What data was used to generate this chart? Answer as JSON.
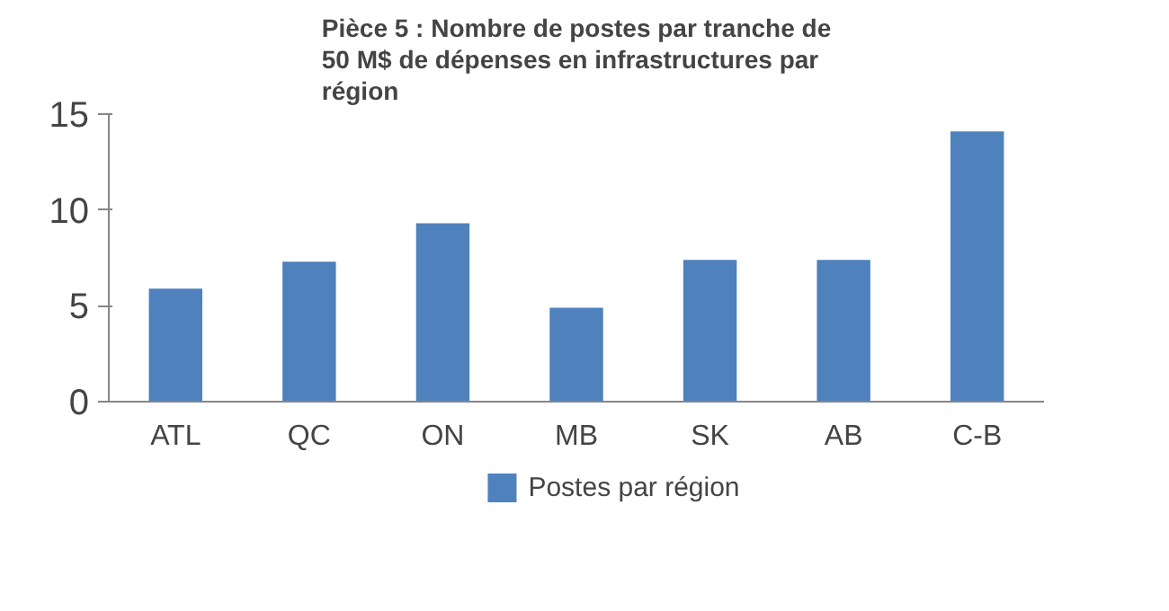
{
  "chart_data": {
    "type": "bar",
    "title": "Pièce 5 : Nombre de postes par tranche de 50 M$ de dépenses en infrastructures par région",
    "categories": [
      "ATL",
      "QC",
      "ON",
      "MB",
      "SK",
      "AB",
      "C-B"
    ],
    "series": [
      {
        "name": "Postes par région",
        "color": "#4f81bd",
        "values": [
          5.9,
          7.3,
          9.3,
          4.9,
          7.4,
          7.4,
          14.1
        ]
      }
    ],
    "ylim": [
      0,
      15
    ],
    "yticks": [
      0,
      5,
      10,
      15
    ],
    "grid": false,
    "legend": "bottom"
  }
}
